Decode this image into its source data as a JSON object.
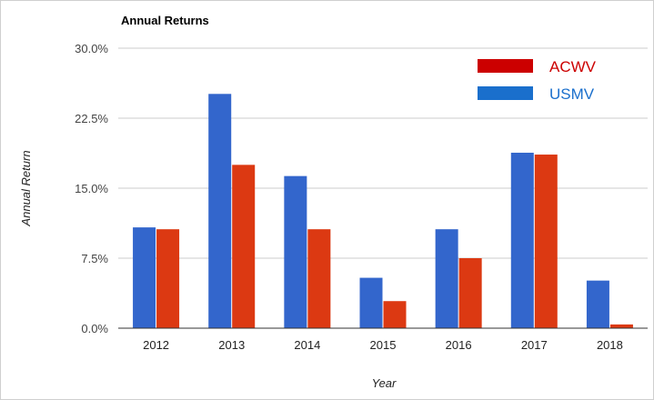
{
  "chart_data": {
    "type": "bar",
    "title": "Annual Returns",
    "xlabel": "Year",
    "ylabel": "Annual Return",
    "categories": [
      "2012",
      "2013",
      "2014",
      "2015",
      "2016",
      "2017",
      "2018"
    ],
    "y_ticks": [
      "0.0%",
      "7.5%",
      "15.0%",
      "22.5%",
      "30.0%"
    ],
    "ylim": [
      0,
      30
    ],
    "grid": true,
    "legend_position": "top-right",
    "series": [
      {
        "name": "USMV",
        "color": "#3366cc",
        "values": [
          10.8,
          25.1,
          16.3,
          5.4,
          10.6,
          18.8,
          5.1
        ]
      },
      {
        "name": "ACWV",
        "color": "#dc3912",
        "values": [
          10.6,
          17.5,
          10.6,
          2.9,
          7.5,
          18.6,
          0.4
        ]
      }
    ],
    "legend": [
      {
        "name": "ACWV",
        "swatch_color": "#cc0000",
        "text_color": "#cc0000"
      },
      {
        "name": "USMV",
        "swatch_color": "#1a6fcc",
        "text_color": "#1a6fcc"
      }
    ]
  }
}
